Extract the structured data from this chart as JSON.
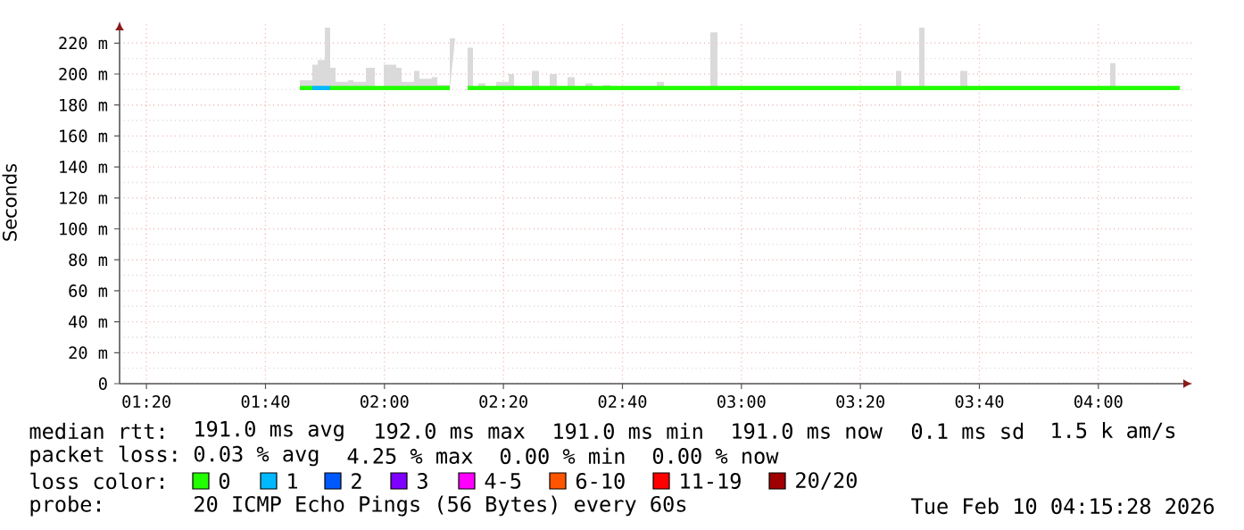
{
  "chart_data": {
    "type": "line",
    "ylabel": "Seconds",
    "xlim": [
      1.258,
      4.263
    ],
    "ylim": [
      0,
      234
    ],
    "xticks": [
      {
        "value": 1.3333,
        "label": "01:20"
      },
      {
        "value": 1.6667,
        "label": "01:40"
      },
      {
        "value": 2.0,
        "label": "02:00"
      },
      {
        "value": 2.3333,
        "label": "02:20"
      },
      {
        "value": 2.6667,
        "label": "02:40"
      },
      {
        "value": 3.0,
        "label": "03:00"
      },
      {
        "value": 3.3333,
        "label": "03:20"
      },
      {
        "value": 3.6667,
        "label": "03:40"
      },
      {
        "value": 4.0,
        "label": "04:00"
      }
    ],
    "yticks": [
      0,
      {
        "value": 20,
        "label": "20 m"
      },
      {
        "value": 40,
        "label": "40 m"
      },
      {
        "value": 60,
        "label": "60 m"
      },
      {
        "value": 80,
        "label": "80 m"
      },
      {
        "value": 100,
        "label": "100 m"
      },
      {
        "value": 120,
        "label": "120 m"
      },
      {
        "value": 140,
        "label": "140 m"
      },
      {
        "value": 160,
        "label": "160 m"
      },
      {
        "value": 180,
        "label": "180 m"
      },
      {
        "value": 200,
        "label": "200 m"
      },
      {
        "value": 220,
        "label": "220 m"
      }
    ],
    "grid": true,
    "legend": "bottom",
    "legend_title": "loss color:",
    "series": [
      {
        "name": "0",
        "color": "#22ff00",
        "x": [
          1.763,
          1.798,
          1.813,
          1.833,
          1.848,
          1.863,
          1.898,
          1.913,
          1.948,
          1.973,
          1.998,
          2.033,
          2.048,
          2.083,
          2.098,
          2.133,
          2.148,
          2.183,
          2.198,
          2.233,
          2.248,
          2.263,
          2.283,
          2.313,
          2.348,
          2.363,
          2.413,
          2.433,
          2.463,
          2.483,
          2.513,
          2.533,
          2.563,
          2.583,
          2.613,
          2.633,
          2.763,
          2.783,
          2.913,
          2.933,
          3.433,
          3.448,
          3.498,
          3.513,
          3.613,
          3.633,
          4.033,
          4.048,
          4.228
        ],
        "values": [
          191,
          191,
          null,
          null,
          191,
          191,
          191,
          191,
          191,
          191,
          191,
          191,
          191,
          191,
          191,
          191,
          191,
          191,
          null,
          191,
          191,
          191,
          191,
          191,
          191,
          191,
          191,
          191,
          191,
          191,
          191,
          191,
          191,
          191,
          191,
          191,
          191,
          191,
          191,
          191,
          191,
          191,
          191,
          191,
          191,
          191,
          191,
          191,
          191
        ],
        "lower": [
          190,
          190,
          190,
          190,
          190,
          190,
          190,
          190,
          190,
          190,
          190,
          190,
          190,
          190,
          190,
          190,
          190,
          190,
          null,
          190,
          190,
          190,
          190,
          190,
          190,
          190,
          190,
          190,
          190,
          190,
          190,
          190,
          190,
          190,
          190,
          190,
          190,
          190,
          190,
          190,
          190,
          190,
          190,
          190,
          190,
          190,
          190,
          190,
          190
        ],
        "upper": [
          196,
          206,
          209,
          230,
          204,
          195,
          196,
          195,
          204,
          192,
          206,
          204,
          195,
          202,
          197,
          198,
          193,
          223,
          null,
          217,
          192,
          194,
          192,
          195,
          200,
          192,
          202,
          192,
          200,
          192,
          198,
          192,
          194,
          192,
          193,
          192,
          195,
          192,
          227,
          192,
          202,
          192,
          230,
          192,
          202,
          192,
          207,
          192,
          192
        ]
      },
      {
        "name": "1",
        "color": "#00b8ff",
        "x": [
          1.798,
          1.848
        ],
        "values": [
          191,
          191
        ]
      },
      {
        "name": "2",
        "color": "#0059ff"
      },
      {
        "name": "3",
        "color": "#7e00ff"
      },
      {
        "name": "4-5",
        "color": "#ff00ff"
      },
      {
        "name": "6-10",
        "color": "#ff5500"
      },
      {
        "name": "11-19",
        "color": "#ff0000"
      },
      {
        "name": "20/20",
        "color": "#a10000"
      }
    ],
    "annotations": [
      "median rtt:",
      "191.0 ms avg",
      "192.0 ms max",
      "191.0 ms min",
      "191.0 ms now",
      "0.1 ms sd",
      "1.5 k am/s",
      "packet loss:",
      "0.03 % avg",
      "4.25 % max",
      "0.00 % min",
      "0.00 % now",
      "probe:",
      "20 ICMP Echo Pings (56 Bytes) every 60s",
      "Tue Feb 10 04:15:28 2026"
    ]
  }
}
